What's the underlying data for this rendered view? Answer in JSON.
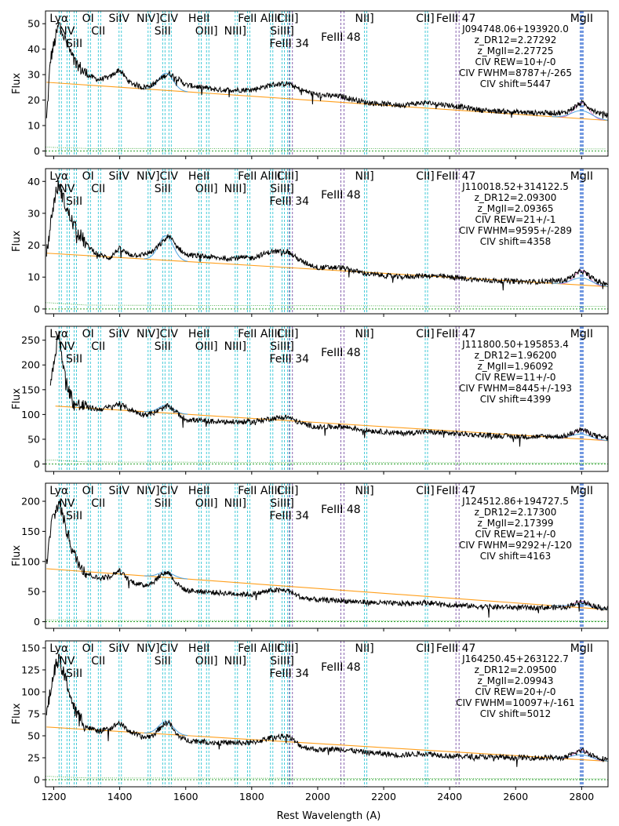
{
  "figure": {
    "xlabel": "Rest Wavelength (A)",
    "ylabel": "Flux",
    "x_ticks": [
      1200,
      1400,
      1600,
      1800,
      2000,
      2200,
      2400,
      2600,
      2800
    ],
    "xlim": [
      1175,
      2880
    ]
  },
  "line_ids": [
    {
      "name": "Lyα",
      "x": 1216,
      "row": 0,
      "style": "cyan"
    },
    {
      "name": "NV",
      "x": 1240,
      "row": 1,
      "style": "cyan"
    },
    {
      "name": "SiII",
      "x": 1262,
      "row": 2,
      "style": "cyan"
    },
    {
      "name": "OI",
      "x": 1304,
      "row": 0,
      "style": "cyan"
    },
    {
      "name": "CII",
      "x": 1335,
      "row": 1,
      "style": "cyan"
    },
    {
      "name": "SiIV",
      "x": 1398,
      "row": 0,
      "style": "cyan"
    },
    {
      "name": "NIV]",
      "x": 1486,
      "row": 0,
      "style": "cyan"
    },
    {
      "name": "CIV",
      "x": 1549,
      "row": 0,
      "style": "cyan"
    },
    {
      "name": "SiII",
      "x": 1530,
      "row": 1,
      "style": "cyan"
    },
    {
      "name": "HeII",
      "x": 1640,
      "row": 0,
      "style": "cyan"
    },
    {
      "name": "OIII]",
      "x": 1663,
      "row": 1,
      "style": "cyan"
    },
    {
      "name": "NIII]",
      "x": 1750,
      "row": 1,
      "style": "cyan"
    },
    {
      "name": "FeII",
      "x": 1787,
      "row": 0,
      "style": "cyan"
    },
    {
      "name": "AlIII",
      "x": 1857,
      "row": 0,
      "style": "cyan"
    },
    {
      "name": "SiIII]",
      "x": 1892,
      "row": 1,
      "style": "cyan"
    },
    {
      "name": "CIII]",
      "x": 1909,
      "row": 0,
      "style": "cyan"
    },
    {
      "name": "FeIII 34",
      "x": 1914,
      "row": 2,
      "style": "purple"
    },
    {
      "name": "FeIII 48",
      "x": 2070,
      "row": 1.5,
      "style": "purple"
    },
    {
      "name": "NII]",
      "x": 2142,
      "row": 0,
      "style": "cyan"
    },
    {
      "name": "CII]",
      "x": 2326,
      "row": 0,
      "style": "cyan"
    },
    {
      "name": "FeIII 47",
      "x": 2419,
      "row": 0,
      "style": "purple"
    },
    {
      "name": "MgII",
      "x": 2800,
      "row": 0,
      "style": "blue"
    }
  ],
  "chart_data": [
    {
      "type": "line",
      "title": "J094748.06+193920.0",
      "annotations": [
        "J094748.06+193920.0",
        "z_DR12=2.27292",
        "z_MgII=2.27725",
        "CIV REW=10+/-0",
        "CIV FWHM=8787+/-265",
        "CIV shift=5447"
      ],
      "ylabel": "Flux",
      "ylim": [
        -2,
        55
      ],
      "y_ticks": [
        0,
        10,
        20,
        30,
        40,
        50
      ],
      "series": [
        {
          "name": "spectrum",
          "x": [
            1178,
            1190,
            1205,
            1216,
            1225,
            1240,
            1262,
            1300,
            1335,
            1370,
            1398,
            1430,
            1470,
            1500,
            1530,
            1549,
            1570,
            1600,
            1700,
            1800,
            1860,
            1909,
            1950,
            2000,
            2070,
            2150,
            2250,
            2326,
            2400,
            2500,
            2650,
            2750,
            2800,
            2850,
            2880
          ],
          "y": [
            12,
            36,
            44,
            50,
            47,
            42,
            35,
            30,
            28,
            29,
            32,
            27,
            25,
            26,
            29,
            30.5,
            29,
            26,
            24,
            24,
            26,
            26.5,
            24,
            22,
            21.5,
            19,
            18,
            19,
            18,
            16,
            15,
            15,
            19,
            15,
            14
          ]
        },
        {
          "name": "continuum",
          "x": [
            1178,
            2880
          ],
          "y": [
            27,
            12
          ]
        },
        {
          "name": "error",
          "x": [
            1178,
            1300,
            2880
          ],
          "y": [
            1.5,
            1,
            0.8
          ]
        }
      ]
    },
    {
      "type": "line",
      "title": "J110018.52+314122.5",
      "annotations": [
        "J110018.52+314122.5",
        "z_DR12=2.09300",
        "z_MgII=2.09365",
        "CIV REW=21+/-1",
        "CIV FWHM=9595+/-289",
        "CIV shift=4358"
      ],
      "ylabel": "Flux",
      "ylim": [
        -1.5,
        44
      ],
      "y_ticks": [
        0,
        10,
        20,
        30,
        40
      ],
      "series": [
        {
          "name": "spectrum",
          "x": [
            1178,
            1195,
            1205,
            1216,
            1225,
            1240,
            1262,
            1300,
            1335,
            1370,
            1398,
            1430,
            1470,
            1500,
            1530,
            1549,
            1570,
            1600,
            1700,
            1800,
            1860,
            1909,
            1950,
            2000,
            2070,
            2150,
            2250,
            2326,
            2400,
            2500,
            2650,
            2750,
            2800,
            2850,
            2880
          ],
          "y": [
            17,
            30,
            36,
            39,
            36,
            31,
            26,
            20,
            17,
            16,
            19,
            17,
            17,
            18,
            21,
            23,
            20,
            17,
            16,
            16,
            18,
            18,
            15,
            13,
            13,
            11,
            10,
            10.5,
            10,
            9,
            8.5,
            9,
            12,
            8.5,
            8
          ]
        },
        {
          "name": "continuum",
          "x": [
            1178,
            2880
          ],
          "y": [
            17.5,
            7
          ]
        },
        {
          "name": "error",
          "x": [
            1178,
            1300,
            2880
          ],
          "y": [
            2,
            1.2,
            0.8
          ]
        }
      ]
    },
    {
      "type": "line",
      "title": "J111800.50+195853.4",
      "annotations": [
        "J111800.50+195853.4",
        "z_DR12=1.96200",
        "z_MgII=1.96092",
        "CIV REW=11+/-0",
        "CIV FWHM=8445+/-193",
        "CIV shift=4399"
      ],
      "ylabel": "Flux",
      "ylim": [
        -15,
        278
      ],
      "y_ticks": [
        0,
        50,
        100,
        150,
        200,
        250
      ],
      "series": [
        {
          "name": "spectrum",
          "x": [
            1190,
            1205,
            1216,
            1225,
            1240,
            1262,
            1300,
            1335,
            1370,
            1398,
            1430,
            1470,
            1500,
            1530,
            1549,
            1570,
            1600,
            1700,
            1800,
            1860,
            1909,
            1950,
            2000,
            2070,
            2150,
            2250,
            2326,
            2400,
            2500,
            2650,
            2750,
            2800,
            2850,
            2880
          ],
          "y": [
            160,
            230,
            270,
            210,
            160,
            120,
            115,
            110,
            115,
            122,
            110,
            100,
            102,
            112,
            118,
            105,
            90,
            85,
            85,
            92,
            95,
            82,
            74,
            76,
            68,
            62,
            65,
            62,
            58,
            55,
            56,
            70,
            55,
            52
          ]
        },
        {
          "name": "continuum",
          "x": [
            1205,
            2880
          ],
          "y": [
            117,
            47
          ]
        },
        {
          "name": "error",
          "x": [
            1205,
            1300,
            2880
          ],
          "y": [
            8,
            4,
            2
          ]
        }
      ]
    },
    {
      "type": "line",
      "title": "J124512.86+194727.5",
      "annotations": [
        "J124512.86+194727.5",
        "z_DR12=2.17300",
        "z_MgII=2.17399",
        "CIV REW=21+/-0",
        "CIV FWHM=9292+/-120",
        "CIV shift=4163"
      ],
      "ylabel": "Flux",
      "ylim": [
        -11,
        230
      ],
      "y_ticks": [
        0,
        50,
        100,
        150,
        200
      ],
      "series": [
        {
          "name": "spectrum",
          "x": [
            1178,
            1195,
            1205,
            1216,
            1225,
            1240,
            1262,
            1300,
            1335,
            1370,
            1398,
            1430,
            1470,
            1500,
            1530,
            1549,
            1570,
            1600,
            1700,
            1800,
            1860,
            1909,
            1950,
            2000,
            2070,
            2150,
            2250,
            2326,
            2400,
            2500,
            2650,
            2750,
            2800,
            2850,
            2880
          ],
          "y": [
            95,
            170,
            180,
            200,
            180,
            150,
            110,
            80,
            72,
            75,
            85,
            68,
            60,
            65,
            80,
            82,
            65,
            52,
            48,
            45,
            52,
            52,
            40,
            36,
            35,
            32,
            30,
            32,
            28,
            25,
            23,
            24,
            34,
            24,
            22
          ]
        },
        {
          "name": "continuum",
          "x": [
            1178,
            2880
          ],
          "y": [
            88,
            20
          ]
        },
        {
          "name": "error",
          "x": [
            1178,
            1300,
            2880
          ],
          "y": [
            3,
            2,
            1
          ]
        }
      ]
    },
    {
      "type": "line",
      "title": "J164250.45+263122.7",
      "annotations": [
        "J164250.45+263122.7",
        "z_DR12=2.09500",
        "z_MgII=2.09943",
        "CIV REW=20+/-0",
        "CIV FWHM=10097+/-161",
        "CIV shift=5012"
      ],
      "ylabel": "Flux",
      "ylim": [
        -8,
        158
      ],
      "y_ticks": [
        0,
        25,
        50,
        75,
        100,
        125,
        150
      ],
      "series": [
        {
          "name": "spectrum",
          "x": [
            1178,
            1195,
            1205,
            1216,
            1225,
            1240,
            1262,
            1300,
            1335,
            1370,
            1398,
            1430,
            1470,
            1500,
            1530,
            1549,
            1570,
            1600,
            1700,
            1800,
            1860,
            1909,
            1950,
            2000,
            2070,
            2150,
            2250,
            2326,
            2400,
            2500,
            2650,
            2750,
            2800,
            2850,
            2880
          ],
          "y": [
            75,
            110,
            130,
            135,
            125,
            110,
            80,
            60,
            55,
            58,
            65,
            55,
            48,
            50,
            62,
            66,
            52,
            45,
            42,
            42,
            48,
            50,
            38,
            34,
            35,
            31,
            28,
            30,
            27,
            26,
            25,
            25,
            34,
            25,
            23
          ]
        },
        {
          "name": "continuum",
          "x": [
            1178,
            2880
          ],
          "y": [
            60,
            21
          ]
        },
        {
          "name": "error",
          "x": [
            1178,
            1300,
            2880
          ],
          "y": [
            4,
            2,
            1
          ]
        }
      ]
    }
  ]
}
